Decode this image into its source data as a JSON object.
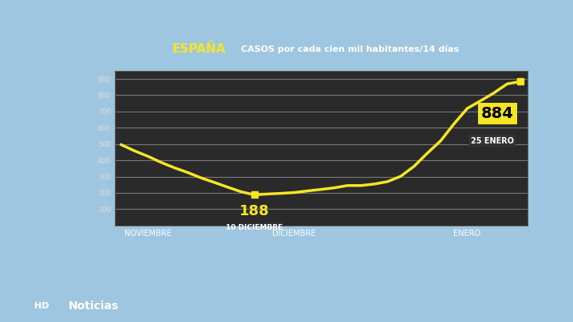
{
  "chart_data": {
    "type": "line",
    "title": "ESPAÑA",
    "subtitle": "CASOS por cada cien mil habitantes/14 días",
    "categories": [
      null,
      null,
      "NOVIEMBRE",
      null,
      null,
      null,
      null,
      null,
      null,
      null,
      null,
      null,
      null,
      "DICIEMBRE",
      null,
      null,
      null,
      null,
      null,
      null,
      null,
      null,
      null,
      null,
      null,
      null,
      "ENERO",
      null,
      null,
      null,
      null
    ],
    "values": [
      496,
      458,
      425,
      387,
      354,
      325,
      292,
      264,
      235,
      207,
      188,
      193,
      197,
      202,
      212,
      221,
      231,
      245,
      245,
      254,
      269,
      302,
      363,
      444,
      520,
      624,
      719,
      766,
      814,
      870,
      884
    ],
    "color": "#f5e625",
    "annotations": [
      {
        "label": "188",
        "date": "10 DICIEMBRE",
        "value": 188
      },
      {
        "label": "884",
        "date": "25 ENERO",
        "value": 884
      }
    ],
    "overlay_texts": [
      "HD",
      "Noticias"
    ],
    "ylim": [
      0,
      950
    ],
    "yticks": [
      100,
      200,
      300,
      400,
      500,
      600,
      700,
      800,
      900
    ],
    "grid": true
  }
}
